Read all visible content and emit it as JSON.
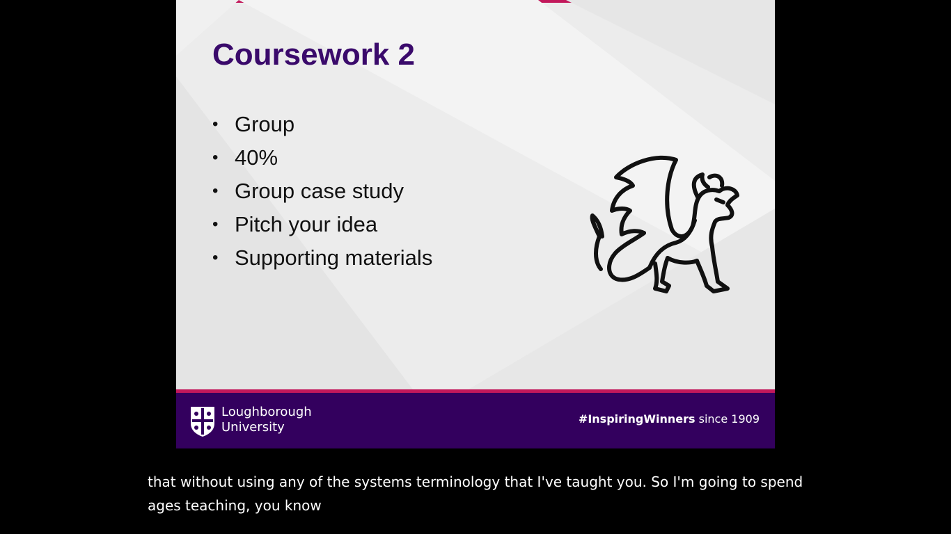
{
  "slide": {
    "title": "Coursework 2",
    "bullets": [
      "Group",
      "40%",
      "Group case study",
      "Pitch your idea",
      "Supporting materials"
    ],
    "image_icon": "dragon-icon",
    "footer": {
      "logo_icon": "university-crest-icon",
      "logo_line1": "Loughborough",
      "logo_line2": "University",
      "tagline_bold": "#InspiringWinners",
      "tagline_rest": "since 1909"
    }
  },
  "captions": {
    "line1": "that without using any of the systems terminology that I've taught you. So I'm going to spend",
    "line2": "ages teaching, you know"
  },
  "colors": {
    "title": "#3a0a6b",
    "accent": "#c2185b",
    "footer_bg": "#33005e",
    "slide_bg": "#ececec"
  }
}
